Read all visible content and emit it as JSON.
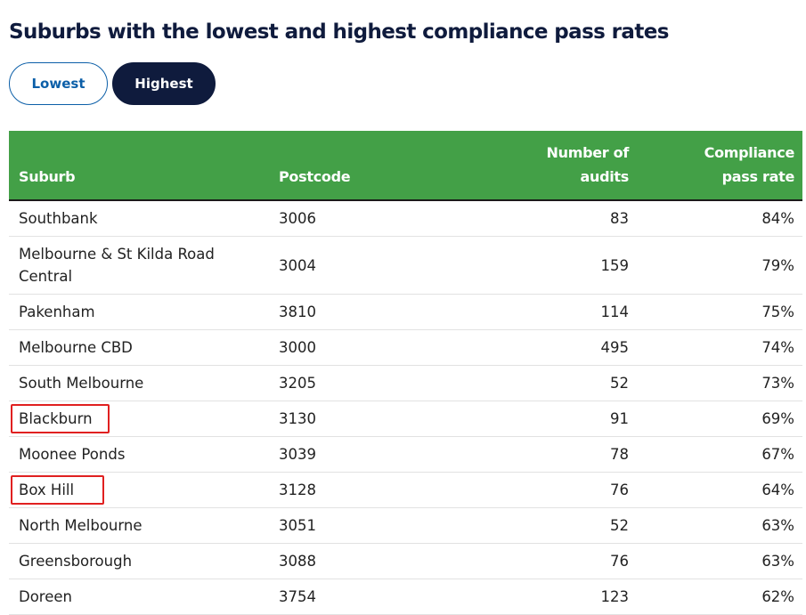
{
  "title": "Suburbs with the lowest and highest compliance pass rates",
  "toggles": {
    "lowest_label": "Lowest",
    "highest_label": "Highest",
    "selected": "Highest"
  },
  "colors": {
    "header_green": "#43a047",
    "navy": "#0f1b3d",
    "link_blue": "#0c5fa8",
    "highlight_red": "#e02020"
  },
  "table": {
    "headers": {
      "suburb": "Suburb",
      "postcode": "Postcode",
      "audits_line1": "Number of",
      "audits_line2": "audits",
      "rate": "Compliance pass rate"
    },
    "rows": [
      {
        "suburb": "Southbank",
        "postcode": "3006",
        "audits": "83",
        "rate": "84%"
      },
      {
        "suburb": "Melbourne & St Kilda Road Central",
        "postcode": "3004",
        "audits": "159",
        "rate": "79%"
      },
      {
        "suburb": "Pakenham",
        "postcode": "3810",
        "audits": "114",
        "rate": "75%"
      },
      {
        "suburb": "Melbourne CBD",
        "postcode": "3000",
        "audits": "495",
        "rate": "74%"
      },
      {
        "suburb": "South Melbourne",
        "postcode": "3205",
        "audits": "52",
        "rate": "73%"
      },
      {
        "suburb": "Blackburn",
        "postcode": "3130",
        "audits": "91",
        "rate": "69%"
      },
      {
        "suburb": "Moonee Ponds",
        "postcode": "3039",
        "audits": "78",
        "rate": "67%"
      },
      {
        "suburb": "Box Hill",
        "postcode": "3128",
        "audits": "76",
        "rate": "64%"
      },
      {
        "suburb": "North Melbourne",
        "postcode": "3051",
        "audits": "52",
        "rate": "63%"
      },
      {
        "suburb": "Greensborough",
        "postcode": "3088",
        "audits": "76",
        "rate": "63%"
      },
      {
        "suburb": "Doreen",
        "postcode": "3754",
        "audits": "123",
        "rate": "62%"
      }
    ]
  }
}
